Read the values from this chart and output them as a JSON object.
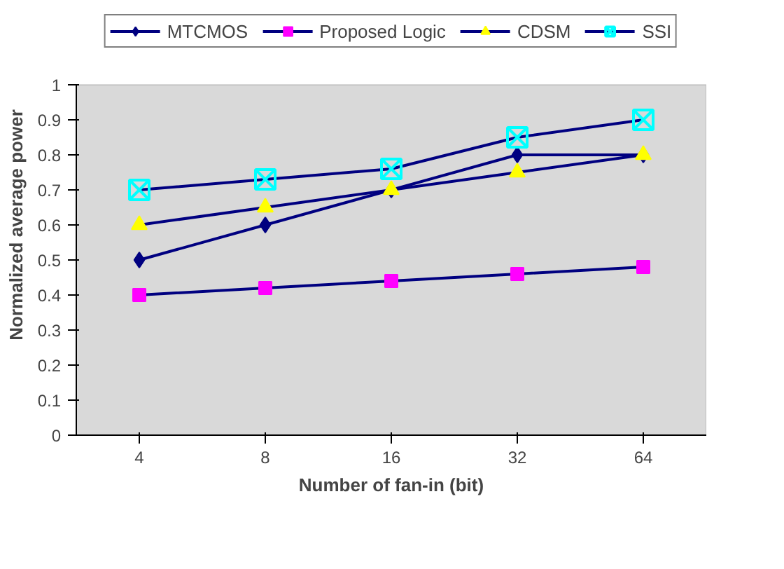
{
  "chart_data": {
    "type": "line",
    "xlabel": "Number of fan-in (bit)",
    "ylabel": "Normalized average power",
    "categories": [
      "4",
      "8",
      "16",
      "32",
      "64"
    ],
    "ylim": [
      0,
      1
    ],
    "yticks": [
      0,
      0.1,
      0.2,
      0.3,
      0.4,
      0.5,
      0.6,
      0.7,
      0.8,
      0.9,
      1
    ],
    "legend": "top",
    "grid": false,
    "series": [
      {
        "name": "MTCMOS",
        "color": "#000080",
        "marker": "diamond",
        "values": [
          0.5,
          0.6,
          0.7,
          0.8,
          0.8
        ]
      },
      {
        "name": "Proposed Logic",
        "color": "#ff00ff",
        "marker": "square",
        "values": [
          0.4,
          0.42,
          0.44,
          0.46,
          0.48
        ]
      },
      {
        "name": "CDSM",
        "color": "#ffff00",
        "marker": "triangle",
        "values": [
          0.6,
          0.65,
          0.7,
          0.75,
          0.8
        ]
      },
      {
        "name": "SSI",
        "color": "#00ffff",
        "marker": "cross",
        "values": [
          0.7,
          0.73,
          0.76,
          0.85,
          0.9
        ]
      }
    ]
  }
}
